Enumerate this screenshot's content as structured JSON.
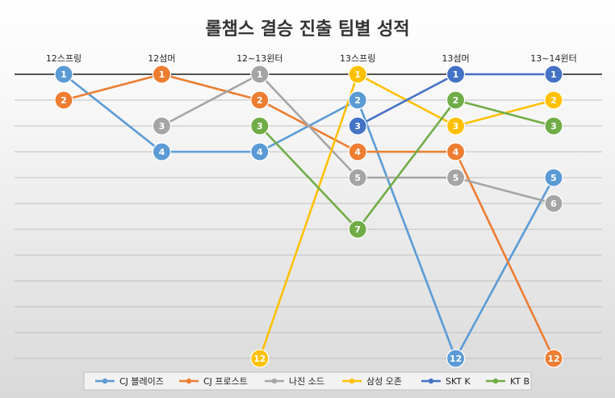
{
  "chart_data": {
    "type": "line",
    "title": "롤챔스 결승 진출 팀별 성적",
    "categories": [
      "12스프링",
      "12섬머",
      "12~13윈터",
      "13스프링",
      "13섬머",
      "13~14윈터"
    ],
    "y_reversed": true,
    "ylim": [
      1,
      12
    ],
    "grid": true,
    "legend_position": "bottom",
    "series": [
      {
        "name": "CJ 블레이즈",
        "color": "#5B9BD5",
        "values": [
          1,
          4,
          4,
          2,
          12,
          5
        ]
      },
      {
        "name": "CJ 프로스트",
        "color": "#ED7D31",
        "values": [
          2,
          1,
          2,
          4,
          4,
          12
        ]
      },
      {
        "name": "나진 소드",
        "color": "#A5A5A5",
        "values": [
          null,
          3,
          1,
          5,
          5,
          6
        ]
      },
      {
        "name": "삼성 오존",
        "color": "#FFC000",
        "values": [
          null,
          null,
          12,
          1,
          3,
          2
        ]
      },
      {
        "name": "SKT K",
        "color": "#4472C4",
        "values": [
          null,
          null,
          null,
          3,
          1,
          1
        ]
      },
      {
        "name": "KT B",
        "color": "#70AD47",
        "values": [
          null,
          null,
          3,
          7,
          2,
          3
        ]
      }
    ]
  }
}
